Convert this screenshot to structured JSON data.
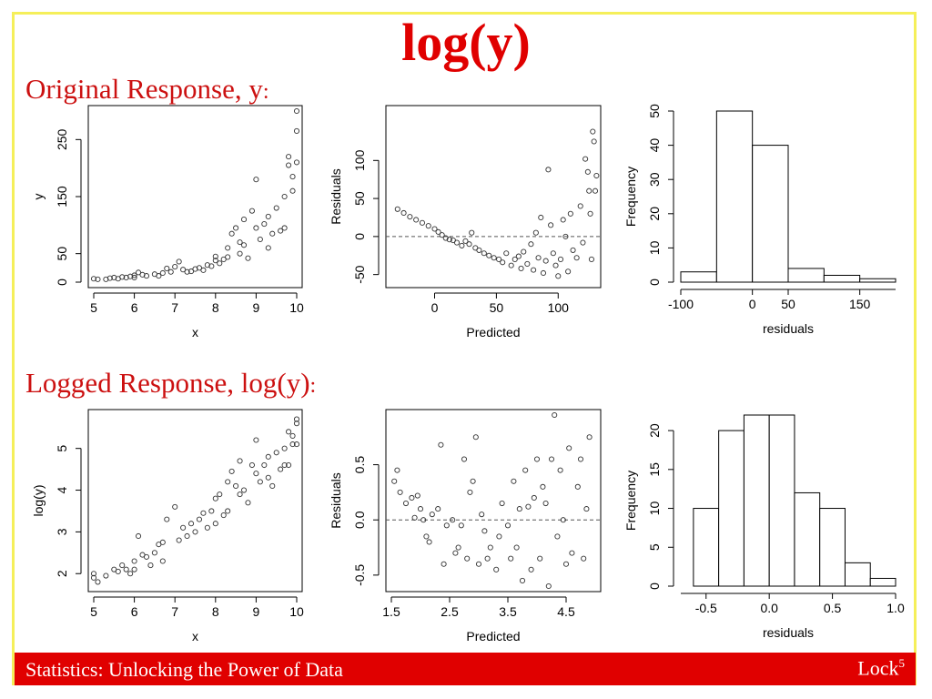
{
  "slide": {
    "title": "log(y)",
    "section1_label": "Original Response, y",
    "section2_label": "Logged Response, log(y)",
    "colon": ":",
    "footer_left": "Statistics: Unlocking the Power of Data",
    "footer_right": "Lock",
    "footer_right_sup": "5"
  },
  "colors": {
    "accent": "#e00000",
    "frame": "#f5ef5a",
    "point": "#333333"
  },
  "chart_data": [
    {
      "type": "scatter",
      "xlabel": "x",
      "ylabel": "y",
      "xlim": [
        5,
        10
      ],
      "ylim": [
        0,
        300
      ],
      "xticks": [
        "5",
        "6",
        "7",
        "8",
        "9",
        "10"
      ],
      "xtick_values": [
        5,
        6,
        7,
        8,
        9,
        10
      ],
      "yticks": [
        "0",
        "50",
        "150",
        "250"
      ],
      "ytick_values": [
        0,
        50,
        150,
        250
      ],
      "points": [
        [
          5.0,
          6
        ],
        [
          5.1,
          5
        ],
        [
          5.3,
          5
        ],
        [
          5.4,
          7
        ],
        [
          5.5,
          8
        ],
        [
          5.6,
          6
        ],
        [
          5.7,
          9
        ],
        [
          5.8,
          8
        ],
        [
          5.9,
          10
        ],
        [
          6.0,
          12
        ],
        [
          6.0,
          8
        ],
        [
          6.1,
          17
        ],
        [
          6.2,
          13
        ],
        [
          6.3,
          11
        ],
        [
          6.5,
          14
        ],
        [
          6.6,
          11
        ],
        [
          6.7,
          16
        ],
        [
          6.8,
          24
        ],
        [
          6.9,
          18
        ],
        [
          7.0,
          27
        ],
        [
          7.1,
          36
        ],
        [
          7.2,
          22
        ],
        [
          7.3,
          18
        ],
        [
          7.4,
          19
        ],
        [
          7.5,
          23
        ],
        [
          7.6,
          25
        ],
        [
          7.7,
          21
        ],
        [
          7.8,
          30
        ],
        [
          7.9,
          28
        ],
        [
          8.0,
          38
        ],
        [
          8.0,
          45
        ],
        [
          8.1,
          33
        ],
        [
          8.2,
          40
        ],
        [
          8.3,
          60
        ],
        [
          8.3,
          44
        ],
        [
          8.4,
          85
        ],
        [
          8.5,
          95
        ],
        [
          8.6,
          70
        ],
        [
          8.6,
          50
        ],
        [
          8.7,
          110
        ],
        [
          8.7,
          65
        ],
        [
          8.8,
          42
        ],
        [
          8.9,
          125
        ],
        [
          9.0,
          180
        ],
        [
          9.0,
          95
        ],
        [
          9.1,
          75
        ],
        [
          9.2,
          102
        ],
        [
          9.3,
          60
        ],
        [
          9.3,
          115
        ],
        [
          9.4,
          85
        ],
        [
          9.5,
          130
        ],
        [
          9.6,
          90
        ],
        [
          9.7,
          150
        ],
        [
          9.7,
          95
        ],
        [
          9.8,
          220
        ],
        [
          9.8,
          205
        ],
        [
          9.9,
          160
        ],
        [
          9.9,
          185
        ],
        [
          10.0,
          300
        ],
        [
          10.0,
          265
        ],
        [
          10.0,
          210
        ]
      ]
    },
    {
      "type": "scatter",
      "xlabel": "Predicted",
      "ylabel": "Residuals",
      "xlim": [
        -35,
        130
      ],
      "ylim": [
        -60,
        165
      ],
      "xticks": [
        "0",
        "50",
        "100"
      ],
      "xtick_values": [
        0,
        50,
        100
      ],
      "yticks": [
        "-50",
        "0",
        "50",
        "100"
      ],
      "ytick_values": [
        -50,
        0,
        50,
        100
      ],
      "reference_line": 0,
      "points": [
        [
          -30,
          36
        ],
        [
          -25,
          31
        ],
        [
          -20,
          26
        ],
        [
          -15,
          22
        ],
        [
          -10,
          18
        ],
        [
          -5,
          14
        ],
        [
          0,
          10
        ],
        [
          3,
          6
        ],
        [
          6,
          2
        ],
        [
          9,
          -2
        ],
        [
          12,
          -4
        ],
        [
          15,
          -5
        ],
        [
          18,
          -8
        ],
        [
          22,
          -12
        ],
        [
          25,
          -6
        ],
        [
          28,
          -10
        ],
        [
          30,
          5
        ],
        [
          33,
          -15
        ],
        [
          36,
          -18
        ],
        [
          40,
          -22
        ],
        [
          44,
          -25
        ],
        [
          48,
          -28
        ],
        [
          52,
          -30
        ],
        [
          55,
          -34
        ],
        [
          58,
          -22
        ],
        [
          62,
          -38
        ],
        [
          65,
          -30
        ],
        [
          68,
          -26
        ],
        [
          70,
          -42
        ],
        [
          72,
          -20
        ],
        [
          75,
          -36
        ],
        [
          78,
          -10
        ],
        [
          80,
          -44
        ],
        [
          82,
          5
        ],
        [
          84,
          -28
        ],
        [
          86,
          25
        ],
        [
          88,
          -48
        ],
        [
          90,
          -32
        ],
        [
          92,
          88
        ],
        [
          94,
          15
        ],
        [
          96,
          -22
        ],
        [
          98,
          -38
        ],
        [
          100,
          -52
        ],
        [
          102,
          -30
        ],
        [
          104,
          22
        ],
        [
          106,
          0
        ],
        [
          108,
          -46
        ],
        [
          110,
          30
        ],
        [
          112,
          -18
        ],
        [
          115,
          -28
        ],
        [
          118,
          40
        ],
        [
          120,
          -8
        ],
        [
          122,
          102
        ],
        [
          124,
          85
        ],
        [
          125,
          60
        ],
        [
          126,
          30
        ],
        [
          127,
          -30
        ],
        [
          128,
          138
        ],
        [
          129,
          125
        ],
        [
          130,
          60
        ],
        [
          131,
          80
        ]
      ]
    },
    {
      "type": "histogram",
      "xlabel": "residuals",
      "ylabel": "Frequency",
      "xlim": [
        -100,
        200
      ],
      "ylim": [
        0,
        50
      ],
      "xticks": [
        "-100",
        "0",
        "50",
        "150"
      ],
      "xtick_values": [
        -100,
        0,
        50,
        150
      ],
      "yticks": [
        "0",
        "10",
        "20",
        "30",
        "40",
        "50"
      ],
      "ytick_values": [
        0,
        10,
        20,
        30,
        40,
        50
      ],
      "bins": [
        -100,
        -50,
        0,
        50,
        100,
        150,
        200
      ],
      "values": [
        3,
        50,
        40,
        4,
        2,
        1
      ]
    },
    {
      "type": "scatter",
      "xlabel": "x",
      "ylabel": "log(y)",
      "xlim": [
        5,
        10
      ],
      "ylim": [
        1.7,
        5.8
      ],
      "xticks": [
        "5",
        "6",
        "7",
        "8",
        "9",
        "10"
      ],
      "xtick_values": [
        5,
        6,
        7,
        8,
        9,
        10
      ],
      "yticks": [
        "2",
        "3",
        "4",
        "5"
      ],
      "ytick_values": [
        2,
        3,
        4,
        5
      ],
      "points": [
        [
          5.0,
          2.0
        ],
        [
          5.0,
          1.9
        ],
        [
          5.1,
          1.8
        ],
        [
          5.3,
          1.95
        ],
        [
          5.5,
          2.1
        ],
        [
          5.6,
          2.05
        ],
        [
          5.7,
          2.2
        ],
        [
          5.8,
          2.1
        ],
        [
          5.9,
          2.0
        ],
        [
          6.0,
          2.3
        ],
        [
          6.0,
          2.1
        ],
        [
          6.1,
          2.9
        ],
        [
          6.2,
          2.45
        ],
        [
          6.3,
          2.4
        ],
        [
          6.4,
          2.2
        ],
        [
          6.5,
          2.5
        ],
        [
          6.6,
          2.7
        ],
        [
          6.7,
          2.75
        ],
        [
          6.7,
          2.3
        ],
        [
          6.8,
          3.3
        ],
        [
          7.0,
          3.6
        ],
        [
          7.1,
          2.8
        ],
        [
          7.2,
          3.1
        ],
        [
          7.3,
          2.9
        ],
        [
          7.4,
          3.2
        ],
        [
          7.5,
          3.0
        ],
        [
          7.6,
          3.3
        ],
        [
          7.7,
          3.45
        ],
        [
          7.8,
          3.1
        ],
        [
          7.9,
          3.5
        ],
        [
          8.0,
          3.8
        ],
        [
          8.0,
          3.2
        ],
        [
          8.1,
          3.9
        ],
        [
          8.2,
          3.4
        ],
        [
          8.3,
          4.2
        ],
        [
          8.3,
          3.5
        ],
        [
          8.4,
          4.45
        ],
        [
          8.5,
          4.1
        ],
        [
          8.6,
          3.9
        ],
        [
          8.6,
          4.7
        ],
        [
          8.7,
          4.0
        ],
        [
          8.8,
          3.7
        ],
        [
          8.9,
          4.6
        ],
        [
          9.0,
          5.2
        ],
        [
          9.0,
          4.4
        ],
        [
          9.1,
          4.2
        ],
        [
          9.2,
          4.6
        ],
        [
          9.3,
          4.8
        ],
        [
          9.3,
          4.3
        ],
        [
          9.4,
          4.1
        ],
        [
          9.5,
          4.9
        ],
        [
          9.6,
          4.5
        ],
        [
          9.7,
          5.0
        ],
        [
          9.7,
          4.6
        ],
        [
          9.8,
          5.4
        ],
        [
          9.8,
          4.6
        ],
        [
          9.9,
          5.1
        ],
        [
          9.9,
          5.3
        ],
        [
          10.0,
          5.6
        ],
        [
          10.0,
          5.1
        ],
        [
          10.0,
          5.7
        ]
      ]
    },
    {
      "type": "scatter",
      "xlabel": "Predicted",
      "ylabel": "Residuals",
      "xlim": [
        1.5,
        5.0
      ],
      "ylim": [
        -0.6,
        0.95
      ],
      "xticks": [
        "1.5",
        "2.5",
        "3.5",
        "4.5"
      ],
      "xtick_values": [
        1.5,
        2.5,
        3.5,
        4.5
      ],
      "yticks": [
        "-0.5",
        "0.0",
        "0.5"
      ],
      "ytick_values": [
        -0.5,
        0.0,
        0.5
      ],
      "reference_line": 0,
      "points": [
        [
          1.55,
          0.35
        ],
        [
          1.6,
          0.45
        ],
        [
          1.65,
          0.25
        ],
        [
          1.75,
          0.15
        ],
        [
          1.85,
          0.2
        ],
        [
          1.9,
          0.02
        ],
        [
          1.95,
          0.22
        ],
        [
          2.0,
          0.1
        ],
        [
          2.05,
          0.0
        ],
        [
          2.1,
          -0.15
        ],
        [
          2.15,
          -0.2
        ],
        [
          2.2,
          0.05
        ],
        [
          2.3,
          0.1
        ],
        [
          2.35,
          0.68
        ],
        [
          2.4,
          -0.4
        ],
        [
          2.45,
          -0.05
        ],
        [
          2.55,
          0.0
        ],
        [
          2.6,
          -0.3
        ],
        [
          2.65,
          -0.25
        ],
        [
          2.7,
          -0.05
        ],
        [
          2.75,
          0.55
        ],
        [
          2.8,
          -0.35
        ],
        [
          2.85,
          0.25
        ],
        [
          2.9,
          0.35
        ],
        [
          2.95,
          0.75
        ],
        [
          3.0,
          -0.4
        ],
        [
          3.05,
          0.05
        ],
        [
          3.1,
          -0.1
        ],
        [
          3.15,
          -0.35
        ],
        [
          3.2,
          -0.25
        ],
        [
          3.3,
          -0.45
        ],
        [
          3.35,
          -0.15
        ],
        [
          3.4,
          0.15
        ],
        [
          3.5,
          -0.05
        ],
        [
          3.55,
          -0.35
        ],
        [
          3.6,
          0.35
        ],
        [
          3.65,
          -0.25
        ],
        [
          3.7,
          0.1
        ],
        [
          3.75,
          -0.55
        ],
        [
          3.8,
          0.45
        ],
        [
          3.85,
          0.12
        ],
        [
          3.9,
          -0.45
        ],
        [
          3.95,
          0.2
        ],
        [
          4.0,
          0.55
        ],
        [
          4.05,
          -0.35
        ],
        [
          4.1,
          0.3
        ],
        [
          4.15,
          0.15
        ],
        [
          4.2,
          -0.6
        ],
        [
          4.25,
          0.55
        ],
        [
          4.3,
          0.95
        ],
        [
          4.35,
          -0.15
        ],
        [
          4.4,
          0.45
        ],
        [
          4.45,
          0.0
        ],
        [
          4.5,
          -0.4
        ],
        [
          4.55,
          0.65
        ],
        [
          4.6,
          -0.3
        ],
        [
          4.7,
          0.3
        ],
        [
          4.75,
          0.55
        ],
        [
          4.8,
          -0.35
        ],
        [
          4.85,
          0.1
        ],
        [
          4.9,
          0.75
        ]
      ]
    },
    {
      "type": "histogram",
      "xlabel": "residuals",
      "ylabel": "Frequency",
      "xlim": [
        -0.7,
        1.0
      ],
      "ylim": [
        0,
        22
      ],
      "xticks": [
        "-0.5",
        "0.0",
        "0.5",
        "1.0"
      ],
      "xtick_values": [
        -0.5,
        0.0,
        0.5,
        1.0
      ],
      "yticks": [
        "0",
        "5",
        "10",
        "15",
        "20"
      ],
      "ytick_values": [
        0,
        5,
        10,
        15,
        20
      ],
      "bins": [
        -0.6,
        -0.4,
        -0.2,
        0.0,
        0.2,
        0.4,
        0.6,
        0.8,
        1.0
      ],
      "values": [
        10,
        20,
        22,
        22,
        12,
        10,
        3,
        1
      ]
    }
  ]
}
